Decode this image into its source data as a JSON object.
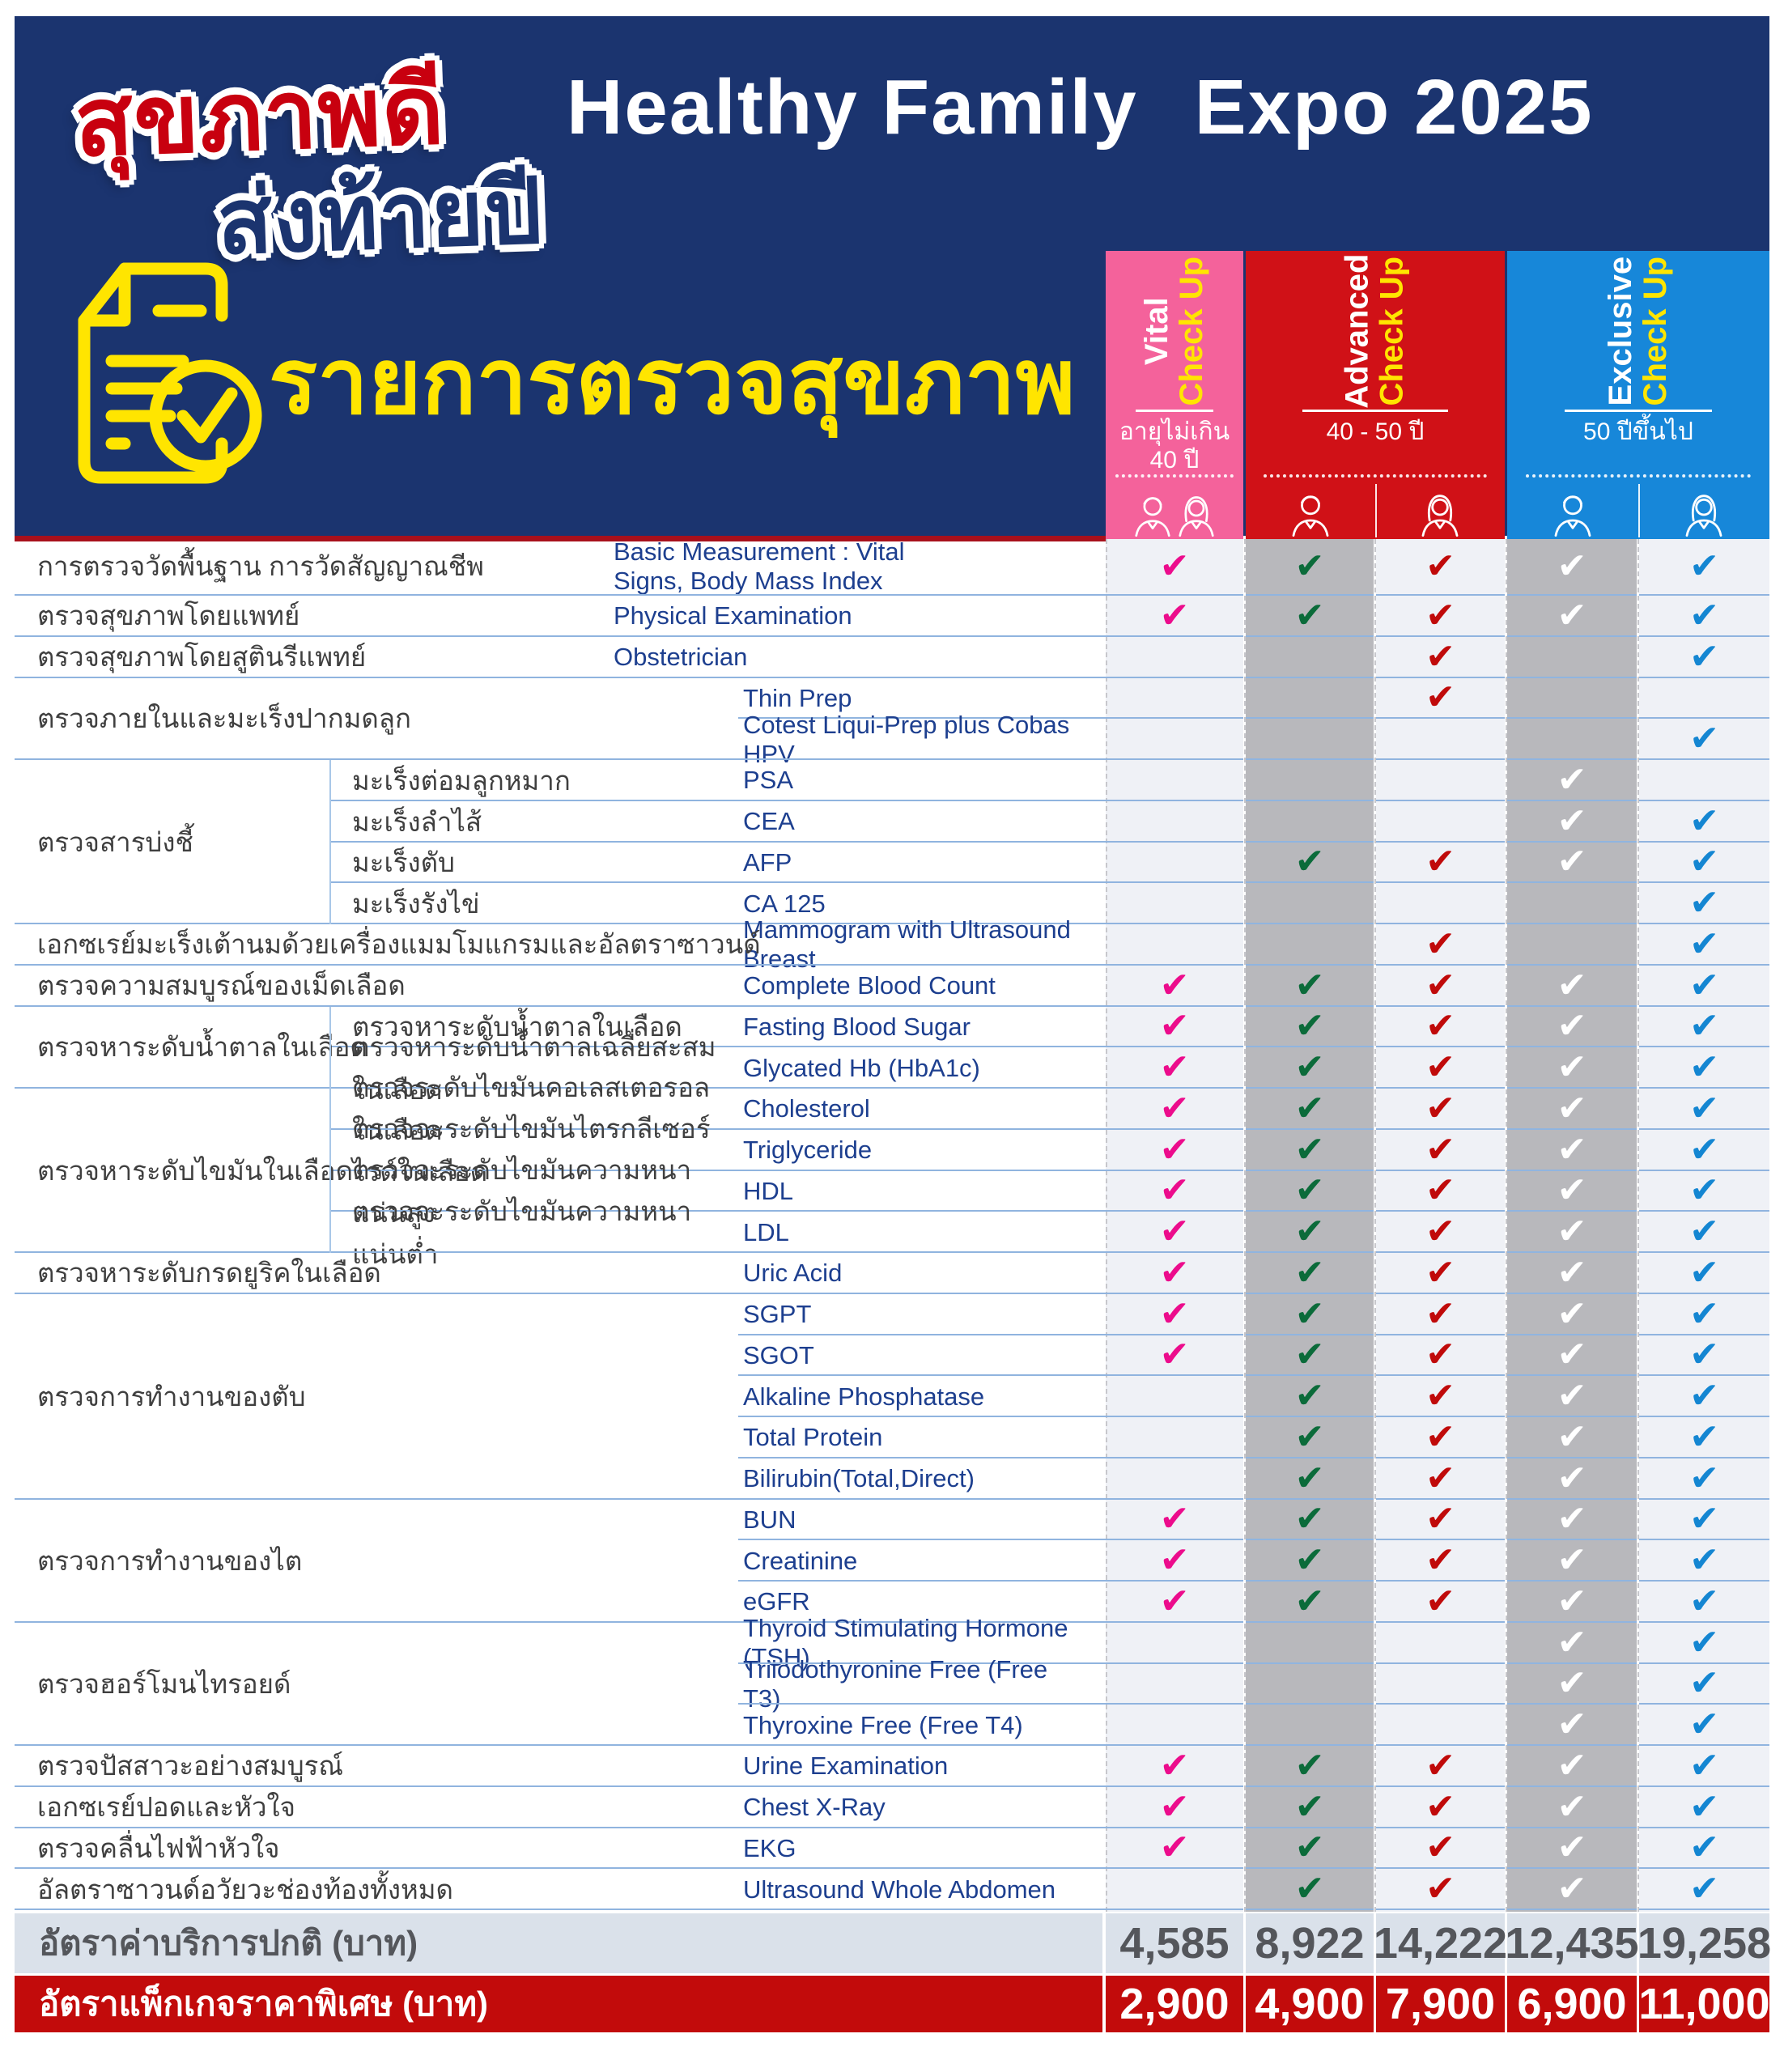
{
  "logo": {
    "line1": "สุขภาพดี",
    "line2": "ส่งท้ายปี"
  },
  "header": {
    "title_left": "Healthy Family",
    "title_right": "Expo 2025"
  },
  "section": {
    "title": "รายการตรวจสุขภาพ",
    "icon": "checklist-icon"
  },
  "colors": {
    "navy": "#1B346F",
    "red_line": "#A8101B",
    "yellow": "#FFE500",
    "pink": "#F4629B",
    "red": "#D01117",
    "blue": "#1787D9",
    "col_light": "#EFF1F6",
    "col_gray": "#B8B8BC",
    "row_line": "#90B4DF",
    "price_normal_bg": "#DAE1EA",
    "price_special_bg": "#C20B0B"
  },
  "packages": [
    {
      "name": "Vital",
      "check_up": "Check Up",
      "age": "อายุไม่เกิน\n40 ปี",
      "color": "#F4629B",
      "genders": [
        "male-female-pair-icon"
      ]
    },
    {
      "name": "Advanced",
      "check_up": "Check Up",
      "age": "40 - 50 ปี",
      "color": "#D01117",
      "genders": [
        "male-icon",
        "female-icon"
      ]
    },
    {
      "name": "Exclusive",
      "check_up": "Check Up",
      "age": "50 ปีขึ้นไป",
      "color": "#1787D9",
      "genders": [
        "male-icon",
        "female-icon"
      ]
    }
  ],
  "check_columns": [
    {
      "id": "vital",
      "check_color": "#EC0C8C",
      "bg": "#EFF1F6"
    },
    {
      "id": "advanced-male",
      "check_color": "#0B6B3A",
      "bg": "#B8B8BC"
    },
    {
      "id": "advanced-female",
      "check_color": "#C00A0A",
      "bg": "#EFF1F6"
    },
    {
      "id": "exclusive-male",
      "check_color": "#FFFFFF",
      "bg": "#B8B8BC"
    },
    {
      "id": "exclusive-female",
      "check_color": "#1486D2",
      "bg": "#EFF1F6"
    }
  ],
  "check_glyph": "✔",
  "groups": [
    {
      "label": "การตรวจวัดพื้นฐาน การวัดสัญญาณชีพ",
      "start": 0,
      "count": 1,
      "divider": false
    },
    {
      "label": "ตรวจสุขภาพโดยแพทย์",
      "start": 1,
      "count": 1,
      "divider": false
    },
    {
      "label": "ตรวจสุขภาพโดยสูตินรีแพทย์",
      "start": 2,
      "count": 1,
      "divider": false
    },
    {
      "label": "ตรวจภายในและมะเร็งปากมดลูก",
      "start": 3,
      "count": 2,
      "divider": false
    },
    {
      "label": "ตรวจสารบ่งชี้",
      "start": 5,
      "count": 4,
      "divider": true
    },
    {
      "label": "เอกซเรย์มะเร็งเต้านมด้วยเครื่องแมมโมแกรมและอัลตราซาวนด์",
      "start": 9,
      "count": 1,
      "divider": false
    },
    {
      "label": "ตรวจความสมบูรณ์ของเม็ดเลือด",
      "start": 10,
      "count": 1,
      "divider": false
    },
    {
      "label": "ตรวจหาระดับน้ำตาลในเลือด",
      "start": 11,
      "count": 2,
      "divider": true
    },
    {
      "label": "ตรวจหาระดับไขมันในเลือด",
      "start": 13,
      "count": 4,
      "divider": true
    },
    {
      "label": "ตรวจหาระดับกรดยูริคในเลือด",
      "start": 17,
      "count": 1,
      "divider": false
    },
    {
      "label": "ตรวจการทำงานของตับ",
      "start": 18,
      "count": 5,
      "divider": false
    },
    {
      "label": "ตรวจการทำงานของไต",
      "start": 23,
      "count": 3,
      "divider": false
    },
    {
      "label": "ตรวจฮอร์โมนไทรอยด์",
      "start": 26,
      "count": 3,
      "divider": false
    },
    {
      "label": "ตรวจปัสสาวะอย่างสมบูรณ์",
      "start": 29,
      "count": 1,
      "divider": false
    },
    {
      "label": "เอกซเรย์ปอดและหัวใจ",
      "start": 30,
      "count": 1,
      "divider": false
    },
    {
      "label": "ตรวจคลื่นไฟฟ้าหัวใจ",
      "start": 31,
      "count": 1,
      "divider": false
    },
    {
      "label": "อัลตราซาวนด์อวัยวะช่องท้องทั้งหมด",
      "start": 32,
      "count": 1,
      "divider": false
    }
  ],
  "rows": [
    {
      "sub": "",
      "en": "Basic Measurement : Vital Signs, Body Mass Index",
      "wide_en": true,
      "checks": [
        1,
        1,
        1,
        1,
        1
      ]
    },
    {
      "sub": "",
      "en": "Physical Examination",
      "wide_en": true,
      "checks": [
        1,
        1,
        1,
        1,
        1
      ]
    },
    {
      "sub": "",
      "en": "Obstetrician",
      "wide_en": true,
      "checks": [
        0,
        0,
        1,
        0,
        1
      ]
    },
    {
      "sub": "",
      "en": "Thin Prep",
      "wide_en": false,
      "checks": [
        0,
        0,
        1,
        0,
        0
      ]
    },
    {
      "sub": "",
      "en": "Cotest Liqui-Prep plus Cobas HPV",
      "wide_en": false,
      "checks": [
        0,
        0,
        0,
        0,
        1
      ]
    },
    {
      "sub": "มะเร็งต่อมลูกหมาก",
      "en": "PSA",
      "wide_en": false,
      "checks": [
        0,
        0,
        0,
        1,
        0
      ]
    },
    {
      "sub": "มะเร็งลำไส้",
      "en": "CEA",
      "wide_en": false,
      "checks": [
        0,
        0,
        0,
        1,
        1
      ]
    },
    {
      "sub": "มะเร็งตับ",
      "en": "AFP",
      "wide_en": false,
      "checks": [
        0,
        1,
        1,
        1,
        1
      ]
    },
    {
      "sub": "มะเร็งรังไข่",
      "en": "CA 125",
      "wide_en": false,
      "checks": [
        0,
        0,
        0,
        0,
        1
      ]
    },
    {
      "sub": "",
      "en": "Mammogram with Ultrasound Breast",
      "wide_en": false,
      "checks": [
        0,
        0,
        1,
        0,
        1
      ]
    },
    {
      "sub": "",
      "en": "Complete Blood Count",
      "wide_en": false,
      "checks": [
        1,
        1,
        1,
        1,
        1
      ]
    },
    {
      "sub": "ตรวจหาระดับน้ำตาลในเลือด",
      "en": "Fasting Blood Sugar",
      "wide_en": false,
      "checks": [
        1,
        1,
        1,
        1,
        1
      ]
    },
    {
      "sub": "ตรวจหาระดับน้ำตาลเฉลี่ยสะสมในเลือด",
      "en": "Glycated Hb (HbA1c)",
      "wide_en": false,
      "checks": [
        1,
        1,
        1,
        1,
        1
      ]
    },
    {
      "sub": "ตรวจระดับไขมันคอเลสเตอรอลในเลือด",
      "en": "Cholesterol",
      "wide_en": false,
      "checks": [
        1,
        1,
        1,
        1,
        1
      ]
    },
    {
      "sub": "ตรวจจะระดับไขมันไตรกลีเซอร์ไรด์ในเลือด",
      "en": "Triglyceride",
      "wide_en": false,
      "checks": [
        1,
        1,
        1,
        1,
        1
      ]
    },
    {
      "sub": "ตรวจจะระดับไขมันความหนาแน่นสูง",
      "en": "HDL",
      "wide_en": false,
      "checks": [
        1,
        1,
        1,
        1,
        1
      ]
    },
    {
      "sub": "ตรวจจะระดับไขมันความหนาแน่นต่ำ",
      "en": "LDL",
      "wide_en": false,
      "checks": [
        1,
        1,
        1,
        1,
        1
      ]
    },
    {
      "sub": "",
      "en": "Uric Acid",
      "wide_en": false,
      "checks": [
        1,
        1,
        1,
        1,
        1
      ]
    },
    {
      "sub": "",
      "en": "SGPT",
      "wide_en": false,
      "checks": [
        1,
        1,
        1,
        1,
        1
      ]
    },
    {
      "sub": "",
      "en": "SGOT",
      "wide_en": false,
      "checks": [
        1,
        1,
        1,
        1,
        1
      ]
    },
    {
      "sub": "",
      "en": "Alkaline Phosphatase",
      "wide_en": false,
      "checks": [
        0,
        1,
        1,
        1,
        1
      ]
    },
    {
      "sub": "",
      "en": "Total Protein",
      "wide_en": false,
      "checks": [
        0,
        1,
        1,
        1,
        1
      ]
    },
    {
      "sub": "",
      "en": "Bilirubin(Total,Direct)",
      "wide_en": false,
      "checks": [
        0,
        1,
        1,
        1,
        1
      ]
    },
    {
      "sub": "",
      "en": "BUN",
      "wide_en": false,
      "checks": [
        1,
        1,
        1,
        1,
        1
      ]
    },
    {
      "sub": "",
      "en": "Creatinine",
      "wide_en": false,
      "checks": [
        1,
        1,
        1,
        1,
        1
      ]
    },
    {
      "sub": "",
      "en": "eGFR",
      "wide_en": false,
      "checks": [
        1,
        1,
        1,
        1,
        1
      ]
    },
    {
      "sub": "",
      "en": "Thyroid Stimulating Hormone (TSH)",
      "wide_en": false,
      "checks": [
        0,
        0,
        0,
        1,
        1
      ]
    },
    {
      "sub": "",
      "en": "Triiodothyronine Free (Free T3)",
      "wide_en": false,
      "checks": [
        0,
        0,
        0,
        1,
        1
      ]
    },
    {
      "sub": "",
      "en": "Thyroxine Free (Free T4)",
      "wide_en": false,
      "checks": [
        0,
        0,
        0,
        1,
        1
      ]
    },
    {
      "sub": "",
      "en": "Urine Examination",
      "wide_en": false,
      "checks": [
        1,
        1,
        1,
        1,
        1
      ]
    },
    {
      "sub": "",
      "en": "Chest X-Ray",
      "wide_en": false,
      "checks": [
        1,
        1,
        1,
        1,
        1
      ]
    },
    {
      "sub": "",
      "en": "EKG",
      "wide_en": false,
      "checks": [
        1,
        1,
        1,
        1,
        1
      ]
    },
    {
      "sub": "",
      "en": "Ultrasound Whole Abdomen",
      "wide_en": false,
      "checks": [
        0,
        1,
        1,
        1,
        1
      ]
    }
  ],
  "pricing": {
    "normal": {
      "label": "อัตราค่าบริการปกติ (บาท)",
      "values": [
        "4,585",
        "8,922",
        "14,222",
        "12,435",
        "19,258"
      ]
    },
    "special": {
      "label": "อัตราแพ็กเกจราคาพิเศษ (บาท)",
      "values": [
        "2,900",
        "4,900",
        "7,900",
        "6,900",
        "11,000"
      ]
    }
  }
}
